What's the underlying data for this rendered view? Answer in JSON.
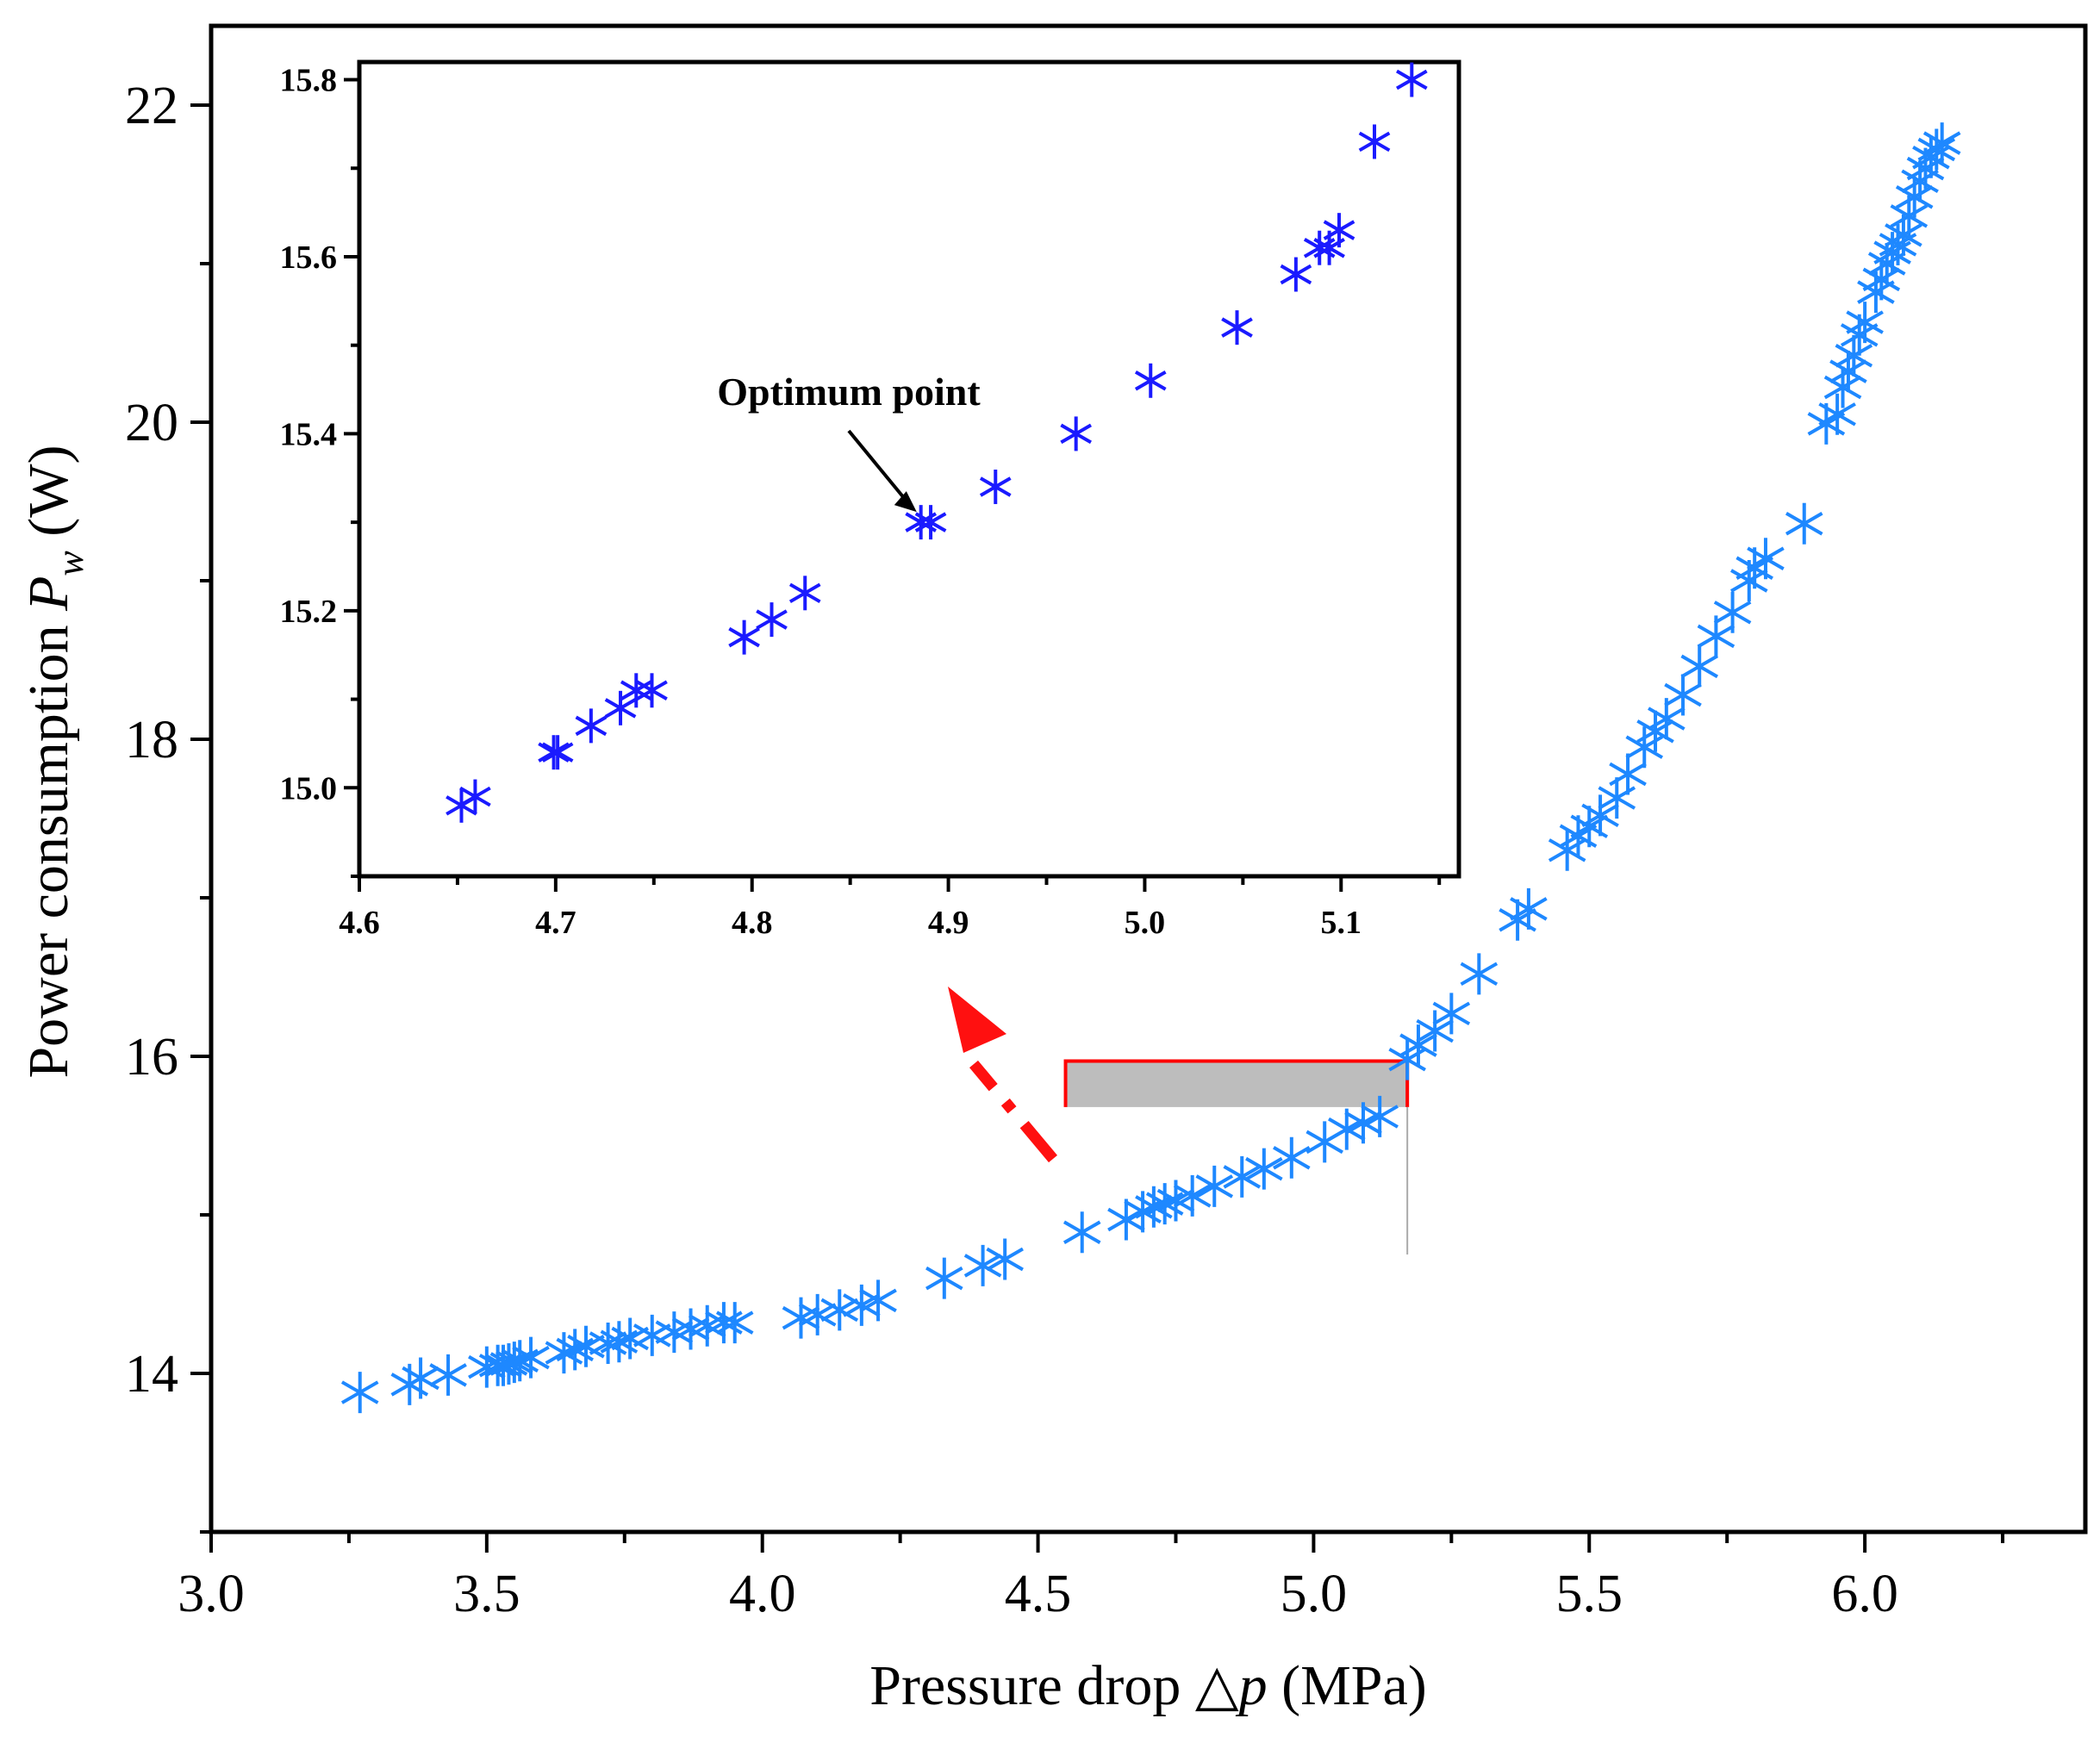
{
  "chart_data": [
    {
      "type": "scatter",
      "xlabel": {
        "prefix": "Pressure drop ",
        "symbol": "△",
        "var": "p",
        "suffix": " (MPa)"
      },
      "ylabel": {
        "prefix": "Power consumption ",
        "var": "P",
        "sub": "w",
        "suffix": " (W)"
      },
      "xlim": [
        3.0,
        6.4
      ],
      "ylim": [
        13.0,
        22.5
      ],
      "xticks": [
        3.0,
        3.5,
        4.0,
        4.5,
        5.0,
        5.5,
        6.0
      ],
      "xtick_labels": [
        "3.0",
        "3.5",
        "4.0",
        "4.5",
        "5.0",
        "5.5",
        "6.0"
      ],
      "yticks": [
        14,
        16,
        18,
        20,
        22
      ],
      "ytick_labels": [
        "14",
        "16",
        "18",
        "20",
        "22"
      ],
      "marker": "asterisk",
      "color": "#1e88ff",
      "highlight_box": {
        "x_range": [
          4.55,
          5.17
        ],
        "y_range": [
          15.68,
          15.97
        ],
        "edge_color": "#ff0000",
        "fill_color": "#bdbdbd"
      },
      "arrow_color": "#ff1010",
      "series": [
        {
          "x": [
            3.27,
            3.36,
            3.38,
            3.43,
            3.5,
            3.52,
            3.53,
            3.54,
            3.55,
            3.56,
            3.58,
            3.64,
            3.66,
            3.68,
            3.72,
            3.74,
            3.76,
            3.8,
            3.84,
            3.87,
            3.9,
            3.93,
            3.95,
            4.07,
            4.1,
            4.14,
            4.18,
            4.21,
            4.33,
            4.4,
            4.44,
            4.58,
            4.66,
            4.69,
            4.71,
            4.73,
            4.75,
            4.78,
            4.82,
            4.87,
            4.91,
            4.96,
            5.02,
            5.06,
            5.09,
            5.12,
            5.17,
            5.19,
            5.22,
            5.25,
            5.3,
            5.37,
            5.39,
            5.46,
            5.48,
            5.5,
            5.52,
            5.55,
            5.57,
            5.6,
            5.62,
            5.64,
            5.67,
            5.7,
            5.73,
            5.76,
            5.79,
            5.8,
            5.82,
            5.89,
            5.93,
            5.95,
            5.96,
            5.97,
            5.98,
            5.99,
            6.0,
            6.02,
            6.03,
            6.04,
            6.05,
            6.06,
            6.07,
            6.08,
            6.09,
            6.1,
            6.11,
            6.12,
            6.13,
            6.14
          ],
          "y": [
            13.88,
            13.93,
            13.97,
            13.99,
            14.04,
            14.05,
            14.05,
            14.06,
            14.07,
            14.08,
            14.1,
            14.13,
            14.15,
            14.17,
            14.19,
            14.2,
            14.22,
            14.24,
            14.26,
            14.28,
            14.3,
            14.32,
            14.32,
            14.35,
            14.37,
            14.4,
            14.43,
            14.46,
            14.6,
            14.68,
            14.72,
            14.89,
            14.97,
            15.02,
            15.05,
            15.07,
            15.09,
            15.12,
            15.18,
            15.24,
            15.29,
            15.36,
            15.46,
            15.54,
            15.58,
            15.62,
            15.98,
            16.07,
            16.16,
            16.27,
            16.52,
            16.86,
            16.93,
            17.3,
            17.39,
            17.45,
            17.52,
            17.63,
            17.78,
            17.95,
            18.05,
            18.13,
            18.28,
            18.46,
            18.65,
            18.8,
            19.0,
            19.08,
            19.14,
            19.36,
            19.99,
            20.05,
            20.22,
            20.32,
            20.42,
            20.55,
            20.63,
            20.82,
            20.9,
            21.0,
            21.07,
            21.12,
            21.18,
            21.3,
            21.42,
            21.52,
            21.6,
            21.67,
            21.72,
            21.76
          ]
        }
      ]
    },
    {
      "type": "scatter",
      "xlim": [
        4.6,
        5.16
      ],
      "ylim": [
        14.9,
        15.82
      ],
      "xticks": [
        4.6,
        4.7,
        4.8,
        4.9,
        5.0,
        5.1
      ],
      "xtick_labels": [
        "4.6",
        "4.7",
        "4.8",
        "4.9",
        "5.0",
        "5.1"
      ],
      "yticks": [
        15.0,
        15.2,
        15.4,
        15.6,
        15.8
      ],
      "ytick_labels": [
        "15.0",
        "15.2",
        "15.4",
        "15.6",
        "15.8"
      ],
      "marker": "asterisk",
      "color": "#1a1aff",
      "annotation": {
        "text": "Optimum point",
        "x": 4.89,
        "y": 15.3
      },
      "series": [
        {
          "x": [
            4.652,
            4.659,
            4.699,
            4.701,
            4.718,
            4.733,
            4.741,
            4.749,
            4.796,
            4.81,
            4.827,
            4.886,
            4.891,
            4.924,
            4.965,
            5.003,
            5.047,
            5.077,
            5.089,
            5.094,
            5.099,
            5.117,
            5.136
          ],
          "y": [
            14.98,
            14.99,
            15.04,
            15.04,
            15.07,
            15.09,
            15.11,
            15.11,
            15.17,
            15.19,
            15.22,
            15.3,
            15.3,
            15.34,
            15.4,
            15.46,
            15.52,
            15.58,
            15.61,
            15.61,
            15.63,
            15.73,
            15.8
          ]
        }
      ]
    }
  ]
}
